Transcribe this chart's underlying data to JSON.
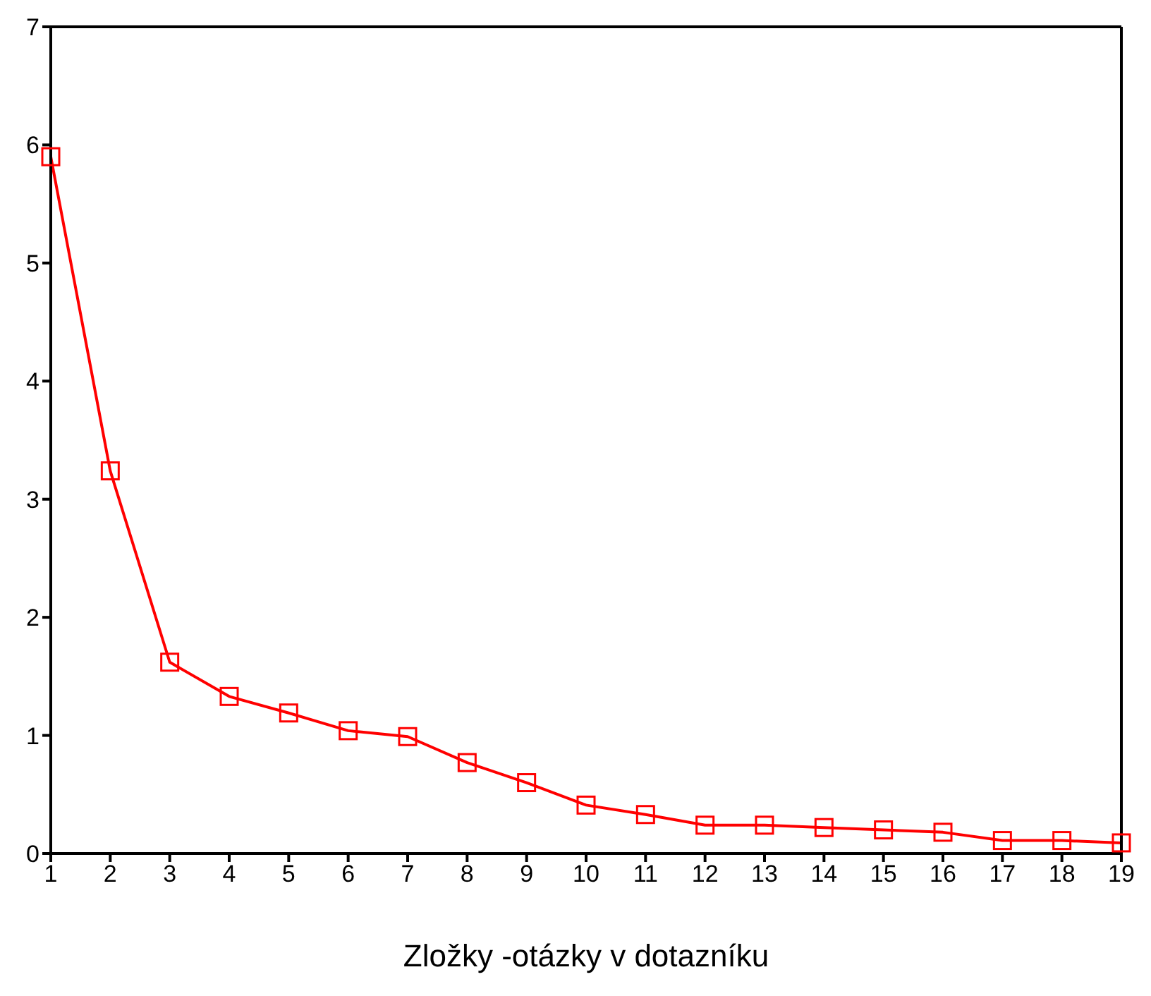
{
  "chart_data": {
    "type": "line",
    "xlabel": "Zložky -otázky v dotazníku",
    "x": [
      1,
      2,
      3,
      4,
      5,
      6,
      7,
      8,
      9,
      10,
      11,
      12,
      13,
      14,
      15,
      16,
      17,
      18,
      19
    ],
    "series": [
      {
        "color": "#ff0000",
        "values": [
          5.9,
          3.24,
          1.62,
          1.33,
          1.19,
          1.04,
          0.99,
          0.77,
          0.6,
          0.41,
          0.33,
          0.24,
          0.24,
          0.22,
          0.2,
          0.18,
          0.11,
          0.11,
          0.09
        ]
      }
    ],
    "xlim": [
      1,
      19
    ],
    "xticks": [
      1,
      2,
      3,
      4,
      5,
      6,
      7,
      8,
      9,
      10,
      11,
      12,
      13,
      14,
      15,
      16,
      17,
      18,
      19
    ],
    "ylim": [
      0,
      7
    ],
    "yticks": [
      0,
      1,
      2,
      3,
      4,
      5,
      6,
      7
    ],
    "grid": false,
    "legend": false,
    "marker": "square",
    "line_style": "solid"
  }
}
